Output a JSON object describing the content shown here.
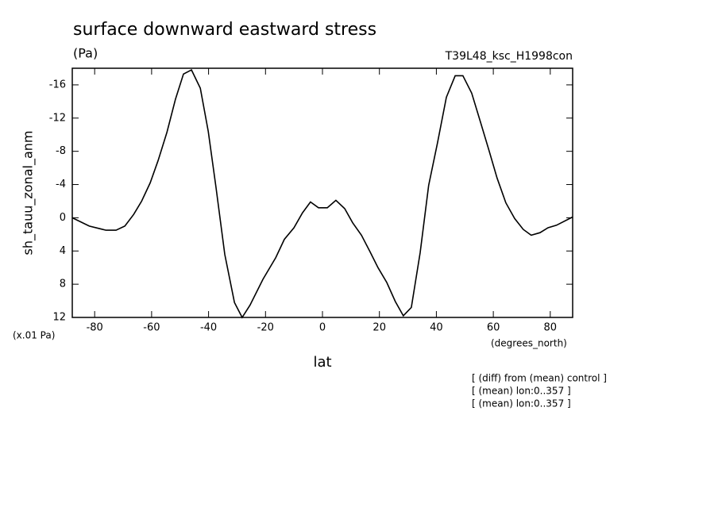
{
  "chart_data": {
    "type": "line",
    "title": "surface downward eastward stress",
    "subtitle": "(Pa)",
    "run_label": "T39L48_ksc_H1998con",
    "ylabel": "sh_tauu_zonal_anm",
    "y_unit": "(x.01 Pa)",
    "x_unit": "(degrees_north)",
    "xlabel": "lat",
    "notes": [
      "[ (diff) from (mean) control ]",
      "[ (mean) lon:0..357 ]",
      "[ (mean) lon:0..357 ]"
    ],
    "xlim": [
      -87.86,
      87.86
    ],
    "ylim": [
      12,
      -18
    ],
    "xticks": [
      -80,
      -60,
      -40,
      -20,
      0,
      20,
      40,
      60,
      80
    ],
    "yticks": [
      12,
      8,
      4,
      0,
      -4,
      -8,
      -12,
      -16
    ],
    "series": [
      {
        "name": "sh_tauu_zonal_anm",
        "color": "#000000",
        "x": [
          -87.9,
          -81.9,
          -76,
          -72.5,
          -69.4,
          -66.3,
          -63.5,
          -60.5,
          -57.7,
          -54.6,
          -51.6,
          -48.8,
          -46,
          -42.9,
          -40.1,
          -37.4,
          -34.3,
          -30.9,
          -28.2,
          -25.4,
          -20.9,
          -16.4,
          -13.4,
          -10,
          -7,
          -4.2,
          -1.4,
          1.7,
          4.7,
          7.8,
          10.6,
          13.7,
          16.7,
          19.5,
          22.6,
          25.6,
          28.4,
          31.2,
          34.3,
          37.3,
          40.4,
          43.5,
          46.6,
          49.3,
          52.4,
          55.5,
          58.5,
          61.3,
          64.4,
          67.5,
          70.5,
          73.3,
          76.4,
          79.2,
          82.2,
          87.9
        ],
        "values": [
          0,
          1.0,
          1.5,
          1.5,
          1.0,
          -0.4,
          -2.0,
          -4.2,
          -6.9,
          -10.3,
          -14.3,
          -17.3,
          -17.8,
          -15.6,
          -10.4,
          -3.7,
          4.4,
          10.2,
          12,
          10.5,
          7.4,
          4.8,
          2.6,
          1.2,
          -0.6,
          -1.9,
          -1.2,
          -1.2,
          -2.1,
          -1.1,
          0.6,
          2.1,
          4.1,
          6.0,
          7.8,
          10.1,
          11.8,
          10.8,
          4.2,
          -3.9,
          -9.0,
          -14.5,
          -17.1,
          -17.1,
          -15.0,
          -11.5,
          -8.1,
          -4.8,
          -1.8,
          0.1,
          1.4,
          2.1,
          1.8,
          1.2,
          0.9,
          -0.1
        ]
      }
    ]
  }
}
